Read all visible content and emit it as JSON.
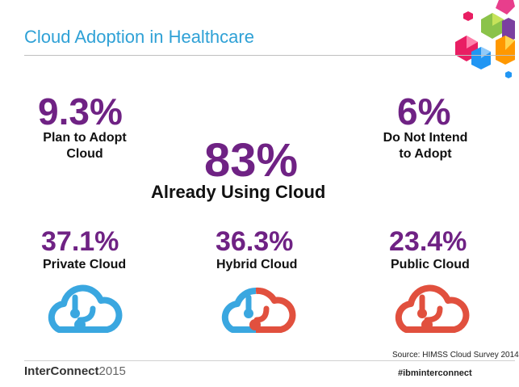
{
  "header": {
    "title": "Cloud Adoption in Healthcare"
  },
  "stats": {
    "plan": {
      "value": "9.3%",
      "label_line1": "Plan to Adopt",
      "label_line2": "Cloud"
    },
    "not_intend": {
      "value": "6%",
      "label_line1": "Do Not Intend",
      "label_line2": "to Adopt"
    },
    "using": {
      "value": "83%",
      "label": "Already Using Cloud"
    },
    "private": {
      "value": "37.1%",
      "label": "Private Cloud"
    },
    "hybrid": {
      "value": "36.3%",
      "label": "Hybrid Cloud"
    },
    "public": {
      "value": "23.4%",
      "label": "Public Cloud"
    }
  },
  "icons": {
    "private": "blue-cloud-icon",
    "hybrid": "blue-red-cloud-icon",
    "public": "red-cloud-icon",
    "decoration": "hexagon-cluster"
  },
  "colors": {
    "accent_purple": "#6f2284",
    "title_blue": "#2fa1d6",
    "cloud_blue": "#3aa7e0",
    "cloud_red": "#e1503e"
  },
  "footer": {
    "source": "Source: HIMSS Cloud Survey 2014",
    "logo_brand": "InterConnect",
    "logo_year": "2015",
    "hashtag": "#ibminterconnect"
  }
}
